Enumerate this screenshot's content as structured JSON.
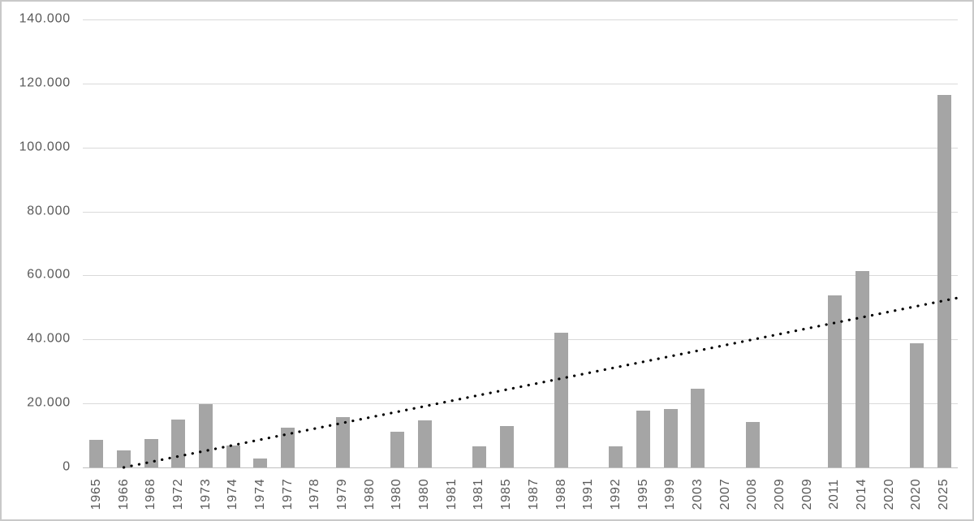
{
  "chart_data": {
    "type": "bar",
    "title": "",
    "xlabel": "",
    "ylabel": "",
    "grid": true,
    "legend": false,
    "ylim": [
      0,
      140000
    ],
    "categories": [
      "1965",
      "1966",
      "1968",
      "1972",
      "1973",
      "1974",
      "1974",
      "1977",
      "1978",
      "1979",
      "1980",
      "1980",
      "1980",
      "1981",
      "1981",
      "1985",
      "1987",
      "1988",
      "1991",
      "1992",
      "1995",
      "1999",
      "2003",
      "2007",
      "2008",
      "2009",
      "2009",
      "2011",
      "2014",
      "2020",
      "2020",
      "2025"
    ],
    "values": [
      8500,
      5400,
      9000,
      14900,
      19800,
      6900,
      2900,
      12400,
      null,
      15700,
      null,
      11200,
      14700,
      null,
      6500,
      13000,
      null,
      42100,
      null,
      6500,
      17800,
      18300,
      24700,
      null,
      14200,
      null,
      null,
      53800,
      61400,
      null,
      38800,
      116500
    ],
    "yticks": [
      {
        "value": 0,
        "label": "0"
      },
      {
        "value": 20000,
        "label": "20.000"
      },
      {
        "value": 40000,
        "label": "40.000"
      },
      {
        "value": 60000,
        "label": "60.000"
      },
      {
        "value": 80000,
        "label": "80.000"
      },
      {
        "value": 100000,
        "label": "100.000"
      },
      {
        "value": 120000,
        "label": "120.000"
      },
      {
        "value": 140000,
        "label": "140.000"
      }
    ],
    "trendline": {
      "type": "linear",
      "style": "dotted",
      "start": {
        "index": 1.0,
        "value": 0
      },
      "end": {
        "index": 31.5,
        "value": 53000
      }
    }
  },
  "colors": {
    "bar": "#a5a5a5",
    "gridline": "#d9d9d9",
    "axis_line": "#bfbfbf",
    "tick_label": "#595959",
    "trendline": "#000000",
    "background": "#ffffff",
    "frame_border": "#c9c9c9"
  }
}
